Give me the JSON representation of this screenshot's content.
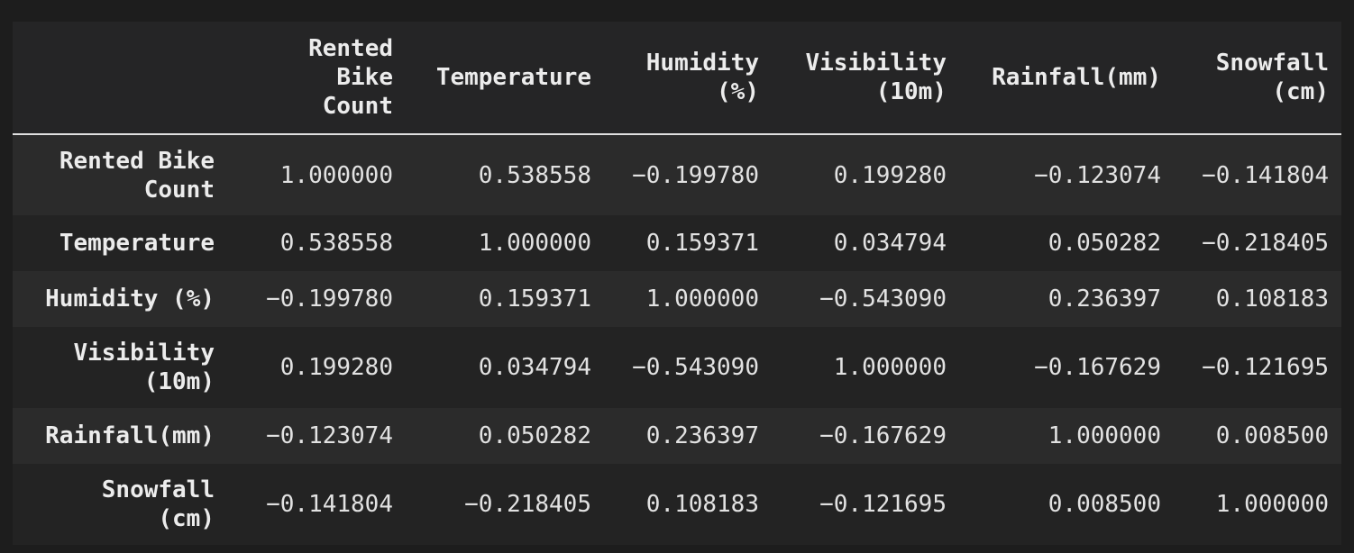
{
  "table": {
    "corner": "",
    "columns": [
      "Rented\nBike\nCount",
      "Temperature",
      "Humidity\n(%)",
      "Visibility\n(10m)",
      "Rainfall(mm)",
      "Snowfall\n(cm)"
    ],
    "rows": [
      {
        "label": "Rented Bike\nCount",
        "values": [
          "1.000000",
          "0.538558",
          "−0.199780",
          "0.199280",
          "−0.123074",
          "−0.141804"
        ]
      },
      {
        "label": "Temperature",
        "values": [
          "0.538558",
          "1.000000",
          "0.159371",
          "0.034794",
          "0.050282",
          "−0.218405"
        ]
      },
      {
        "label": "Humidity (%)",
        "values": [
          "−0.199780",
          "0.159371",
          "1.000000",
          "−0.543090",
          "0.236397",
          "0.108183"
        ]
      },
      {
        "label": "Visibility\n(10m)",
        "values": [
          "0.199280",
          "0.034794",
          "−0.543090",
          "1.000000",
          "−0.167629",
          "−0.121695"
        ]
      },
      {
        "label": "Rainfall(mm)",
        "values": [
          "−0.123074",
          "0.050282",
          "0.236397",
          "−0.167629",
          "1.000000",
          "0.008500"
        ]
      },
      {
        "label": "Snowfall\n(cm)",
        "values": [
          "−0.141804",
          "−0.218405",
          "0.108183",
          "−0.121695",
          "0.008500",
          "1.000000"
        ]
      }
    ]
  },
  "colors": {
    "page_background": "#1d1d1d",
    "table_background": "#252526",
    "row_stripe": "#2b2b2b",
    "text": "#e6e6e6",
    "header_rule": "#e0e0e0"
  }
}
